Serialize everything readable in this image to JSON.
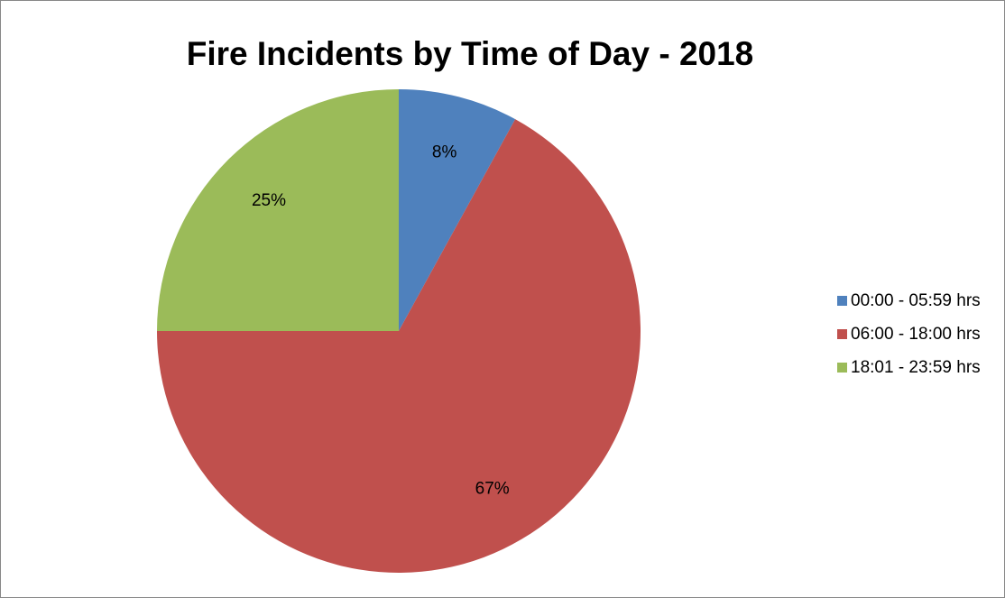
{
  "chart_data": {
    "type": "pie",
    "title": "Fire Incidents by Time of Day - 2018",
    "categories": [
      "00:00 - 05:59 hrs",
      "06:00 - 18:00 hrs",
      "18:01 - 23:59 hrs"
    ],
    "values": [
      8,
      67,
      25
    ],
    "data_labels": [
      "8%",
      "67%",
      "25%"
    ],
    "colors": [
      "#4f81bd",
      "#c0504d",
      "#9bbb59"
    ],
    "legend_position": "right",
    "start_angle": "12 o'clock",
    "direction": "clockwise"
  }
}
